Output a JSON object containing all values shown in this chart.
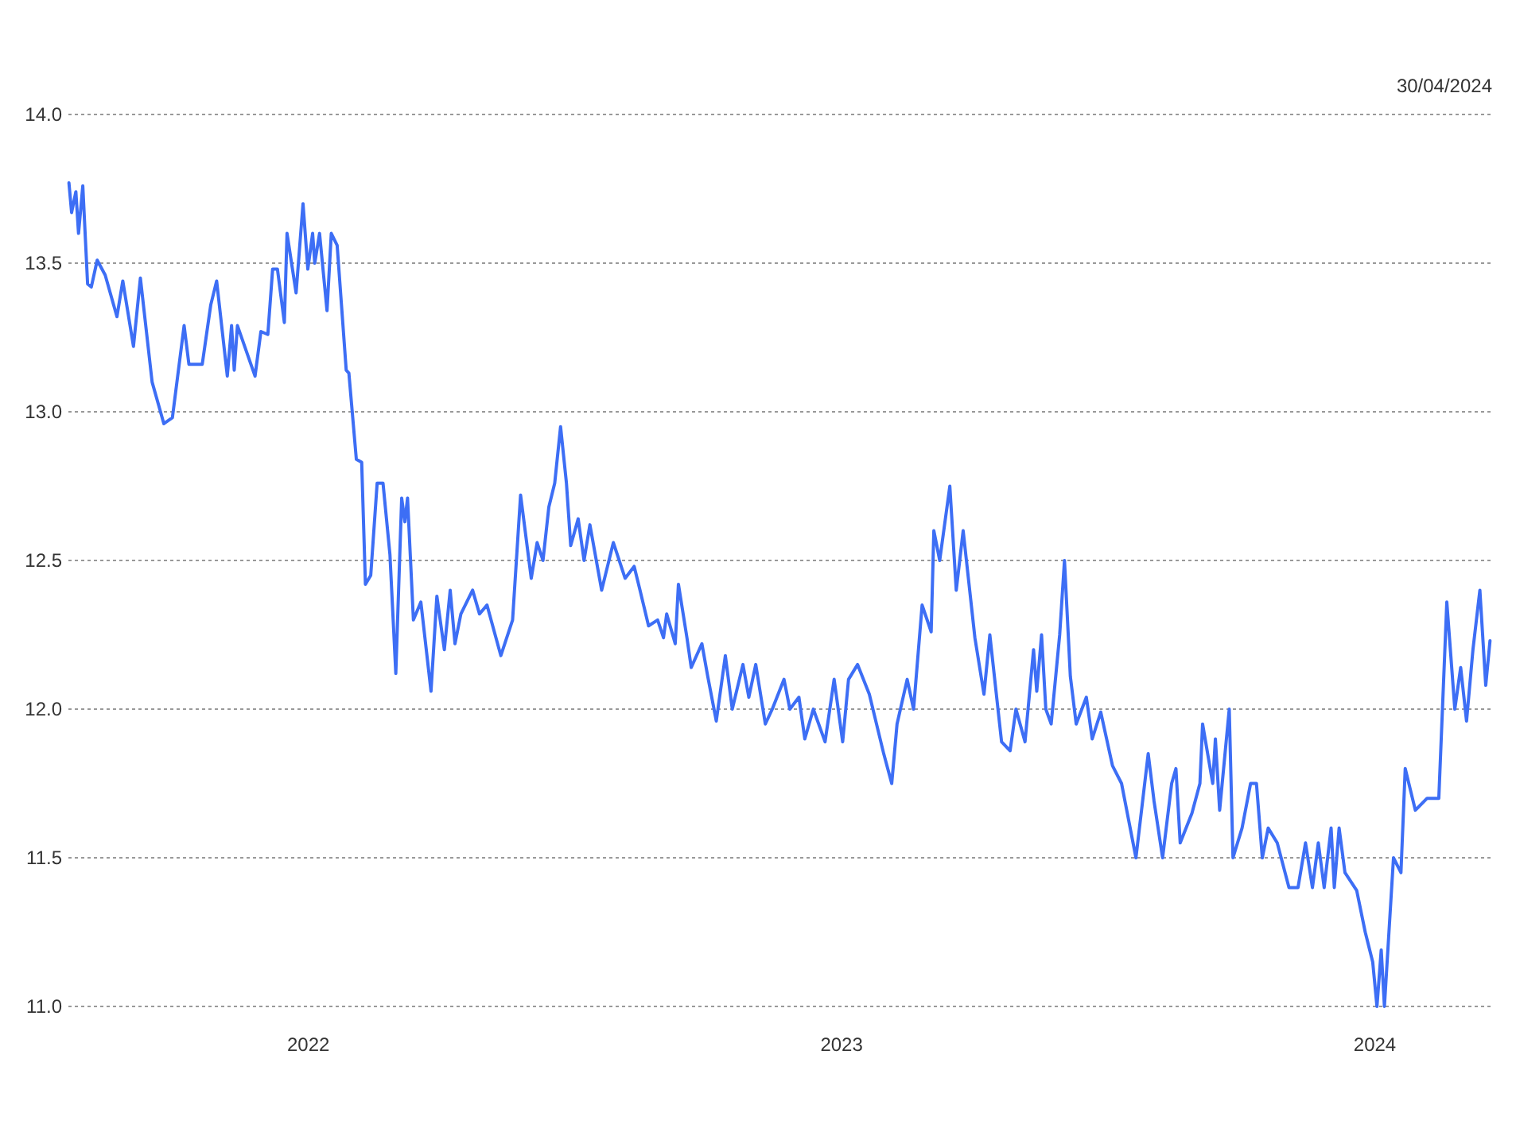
{
  "chart_data": {
    "type": "line",
    "annotations": [
      "30/04/2024"
    ],
    "xlim": [
      2021.55,
      2024.22
    ],
    "xticks": [
      2022,
      2023,
      2024
    ],
    "ylim": [
      11,
      14
    ],
    "yticks": [
      {
        "value": 11,
        "label": "11.0"
      },
      11.5,
      {
        "value": 12,
        "label": "12.0"
      },
      12.5,
      {
        "value": 13,
        "label": "13.0"
      },
      13.5,
      {
        "value": 14,
        "label": "14.0"
      }
    ],
    "grid": "y",
    "series": [
      {
        "color": "#3d6ef5",
        "x": [
          2021.551,
          2021.556,
          2021.564,
          2021.569,
          2021.577,
          2021.586,
          2021.593,
          2021.604,
          2021.619,
          2021.641,
          2021.652,
          2021.672,
          2021.685,
          2021.707,
          2021.729,
          2021.745,
          2021.767,
          2021.776,
          2021.801,
          2021.817,
          2021.828,
          2021.848,
          2021.856,
          2021.861,
          2021.867,
          2021.9,
          2021.911,
          2021.924,
          2021.933,
          2021.942,
          2021.955,
          2021.96,
          2021.977,
          2021.99,
          2021.999,
          2022.008,
          2022.012,
          2022.021,
          2022.035,
          2022.043,
          2022.054,
          2022.071,
          2022.076,
          2022.09,
          2022.1,
          2022.107,
          2022.117,
          2022.129,
          2022.14,
          2022.153,
          2022.164,
          2022.175,
          2022.181,
          2022.186,
          2022.197,
          2022.211,
          2022.23,
          2022.241,
          2022.255,
          2022.266,
          2022.275,
          2022.286,
          2022.308,
          2022.321,
          2022.335,
          2022.361,
          2022.383,
          2022.398,
          2022.418,
          2022.429,
          2022.44,
          2022.451,
          2022.462,
          2022.473,
          2022.484,
          2022.492,
          2022.506,
          2022.517,
          2022.528,
          2022.55,
          2022.572,
          2022.594,
          2022.611,
          2022.622,
          2022.638,
          2022.655,
          2022.666,
          2022.672,
          2022.688,
          2022.694,
          2022.71,
          2022.718,
          2022.738,
          2022.749,
          2022.765,
          2022.782,
          2022.795,
          2022.815,
          2022.826,
          2022.839,
          2022.857,
          2022.87,
          2022.892,
          2022.903,
          2022.92,
          2022.931,
          2022.947,
          2022.969,
          2022.986,
          2023.002,
          2023.013,
          2023.03,
          2023.052,
          2023.079,
          2023.094,
          2023.104,
          2023.123,
          2023.135,
          2023.151,
          2023.168,
          2023.173,
          2023.184,
          2023.203,
          2023.215,
          2023.228,
          2023.25,
          2023.267,
          2023.278,
          2023.3,
          2023.316,
          2023.327,
          2023.344,
          2023.36,
          2023.366,
          2023.375,
          2023.383,
          2023.393,
          2023.409,
          2023.418,
          2023.429,
          2023.44,
          2023.459,
          2023.47,
          2023.486,
          2023.508,
          2023.525,
          2023.552,
          2023.575,
          2023.586,
          2023.602,
          2023.619,
          2023.627,
          2023.635,
          2023.657,
          2023.672,
          2023.677,
          2023.696,
          2023.701,
          2023.709,
          2023.727,
          2023.734,
          2023.751,
          2023.767,
          2023.778,
          2023.789,
          2023.8,
          2023.817,
          2023.839,
          2023.856,
          2023.87,
          2023.883,
          2023.894,
          2023.905,
          2023.918,
          2023.924,
          2023.933,
          2023.944,
          2023.966,
          2023.982,
          2023.996,
          2024.004,
          2024.012,
          2024.018,
          2024.035,
          2024.049,
          2024.057,
          2024.076,
          2024.098,
          2024.12,
          2024.135,
          2024.15,
          2024.161,
          2024.172,
          2024.184,
          2024.197,
          2024.208,
          2024.216
        ],
        "values": [
          13.77,
          13.67,
          13.74,
          13.6,
          13.76,
          13.43,
          13.42,
          13.51,
          13.46,
          13.32,
          13.44,
          13.22,
          13.45,
          13.1,
          12.96,
          12.98,
          13.29,
          13.16,
          13.16,
          13.36,
          13.44,
          13.12,
          13.29,
          13.14,
          13.29,
          13.12,
          13.27,
          13.26,
          13.48,
          13.48,
          13.3,
          13.6,
          13.4,
          13.7,
          13.48,
          13.6,
          13.5,
          13.6,
          13.34,
          13.6,
          13.56,
          13.14,
          13.13,
          12.84,
          12.83,
          12.42,
          12.45,
          12.76,
          12.76,
          12.52,
          12.12,
          12.71,
          12.63,
          12.71,
          12.3,
          12.36,
          12.06,
          12.38,
          12.2,
          12.4,
          12.22,
          12.32,
          12.4,
          12.32,
          12.35,
          12.18,
          12.3,
          12.72,
          12.44,
          12.56,
          12.5,
          12.68,
          12.76,
          12.95,
          12.76,
          12.55,
          12.64,
          12.5,
          12.62,
          12.4,
          12.56,
          12.44,
          12.48,
          12.4,
          12.28,
          12.3,
          12.24,
          12.32,
          12.22,
          12.42,
          12.24,
          12.14,
          12.22,
          12.11,
          11.96,
          12.18,
          12,
          12.15,
          12.04,
          12.15,
          11.95,
          12,
          12.1,
          12,
          12.04,
          11.9,
          12,
          11.89,
          12.1,
          11.89,
          12.1,
          12.15,
          12.05,
          11.85,
          11.75,
          11.95,
          12.1,
          12,
          12.35,
          12.26,
          12.6,
          12.5,
          12.75,
          12.4,
          12.6,
          12.24,
          12.05,
          12.25,
          11.89,
          11.86,
          12,
          11.89,
          12.2,
          12.06,
          12.25,
          12,
          11.95,
          12.25,
          12.5,
          12.11,
          11.95,
          12.04,
          11.9,
          11.99,
          11.81,
          11.75,
          11.5,
          11.85,
          11.69,
          11.5,
          11.75,
          11.8,
          11.55,
          11.65,
          11.75,
          11.95,
          11.75,
          11.9,
          11.66,
          12,
          11.5,
          11.6,
          11.75,
          11.75,
          11.5,
          11.6,
          11.55,
          11.4,
          11.4,
          11.55,
          11.4,
          11.55,
          11.4,
          11.6,
          11.4,
          11.6,
          11.45,
          11.39,
          11.25,
          11.15,
          11,
          11.19,
          11,
          11.5,
          11.45,
          11.8,
          11.66,
          11.7,
          11.7,
          12.36,
          12,
          12.14,
          11.96,
          12.2,
          12.4,
          12.08,
          12.23
        ]
      }
    ]
  }
}
